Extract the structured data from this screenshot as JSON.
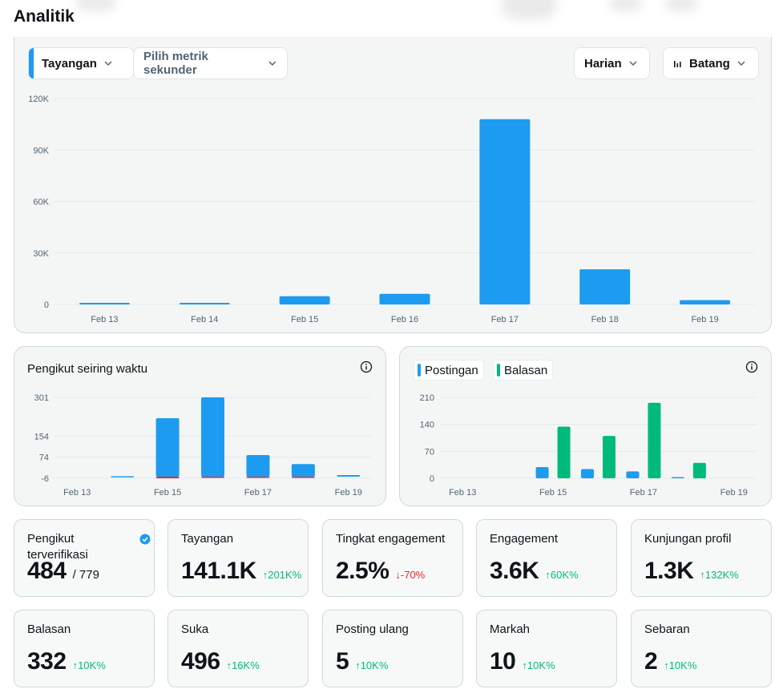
{
  "page": {
    "title": "Analitik"
  },
  "toolbar": {
    "primary_metric": "Tayangan",
    "secondary_metric": "Pilih metrik sekunder",
    "interval": "Harian",
    "chart_type": "Batang",
    "accent_color": "#1d9bf0"
  },
  "chart_data": [
    {
      "type": "bar",
      "categories": [
        "Feb 13",
        "Feb 14",
        "Feb 15",
        "Feb 16",
        "Feb 17",
        "Feb 18",
        "Feb 19"
      ],
      "values": [
        300,
        400,
        4800,
        6200,
        108000,
        20500,
        2500
      ],
      "yticks": [
        "120K",
        "90K",
        "60K",
        "30K",
        "0"
      ],
      "ylim": [
        0,
        120000
      ],
      "color": "#1d9bf0"
    },
    {
      "type": "bar",
      "title": "Pengikut seiring waktu",
      "categories": [
        "Feb 13",
        "Feb 14",
        "Feb 15",
        "Feb 16",
        "Feb 17",
        "Feb 18",
        "Feb 19"
      ],
      "xticks": [
        "Feb 13",
        "Feb 15",
        "Feb 17",
        "Feb 19"
      ],
      "series": [
        {
          "values": [
            0,
            2,
            222,
            301,
            82,
            48,
            6
          ],
          "color": "#1d9bf0"
        },
        {
          "values": [
            0,
            0,
            -6,
            -4,
            -3,
            -3,
            0
          ],
          "color": "#f4212e"
        }
      ],
      "yticks": [
        "301",
        "154",
        "74",
        "-6"
      ],
      "ylim": [
        -6,
        301
      ]
    },
    {
      "type": "bar",
      "categories": [
        "Feb 13",
        "Feb 14",
        "Feb 15",
        "Feb 16",
        "Feb 17",
        "Feb 18",
        "Feb 19"
      ],
      "xticks": [
        "Feb 13",
        "Feb 15",
        "Feb 17",
        "Feb 19"
      ],
      "series": [
        {
          "name": "Postingan",
          "values": [
            0,
            0,
            29,
            24,
            18,
            2,
            0
          ],
          "color": "#1d9bf0"
        },
        {
          "name": "Balasan",
          "values": [
            0,
            0,
            134,
            110,
            196,
            40,
            0
          ],
          "color": "#00ba7c"
        }
      ],
      "yticks": [
        "210",
        "140",
        "70",
        "0"
      ],
      "ylim": [
        0,
        210
      ]
    }
  ],
  "followers": {
    "title": "Pengikut seiring waktu"
  },
  "posts": {
    "legend_posts": "Postingan",
    "legend_replies": "Balasan"
  },
  "stats": [
    {
      "label": "Pengikut terverifikasi",
      "value": "484",
      "total": "/ 779",
      "change": ""
    },
    {
      "label": "Tayangan",
      "value": "141.1K",
      "change": "↑201K%",
      "dir": "up"
    },
    {
      "label": "Tingkat engagement",
      "value": "2.5%",
      "change": "↓-70%",
      "dir": "down"
    },
    {
      "label": "Engagement",
      "value": "3.6K",
      "change": "↑60K%",
      "dir": "up"
    },
    {
      "label": "Kunjungan profil",
      "value": "1.3K",
      "change": "↑132K%",
      "dir": "up"
    },
    {
      "label": "Balasan",
      "value": "332",
      "change": "↑10K%",
      "dir": "up"
    },
    {
      "label": "Suka",
      "value": "496",
      "change": "↑16K%",
      "dir": "up"
    },
    {
      "label": "Posting ulang",
      "value": "5",
      "change": "↑10K%",
      "dir": "up"
    },
    {
      "label": "Markah",
      "value": "10",
      "change": "↑10K%",
      "dir": "up"
    },
    {
      "label": "Sebaran",
      "value": "2",
      "change": "↑10K%",
      "dir": "up"
    }
  ]
}
